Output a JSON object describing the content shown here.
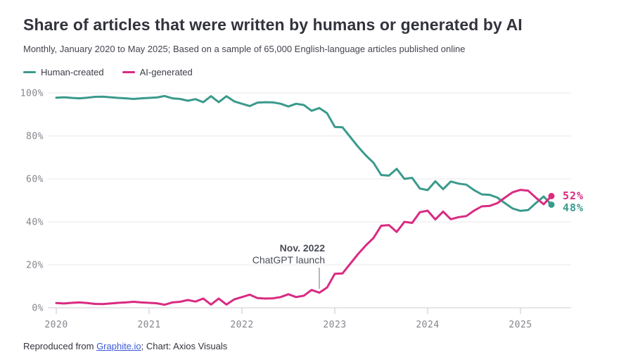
{
  "header": {
    "title": "Share of articles that were written by humans or generated by AI",
    "subtitle": "Monthly, January 2020 to May 2025; Based on a sample of 65,000 English-language articles published online"
  },
  "legend": [
    {
      "label": "Human-created",
      "color": "#3a9a8c"
    },
    {
      "label": "AI-generated",
      "color": "#da2a82"
    }
  ],
  "chart_data": {
    "type": "line",
    "title": "Share of articles that were written by humans or generated by AI",
    "x_unit": "month",
    "x_range": [
      "2020-01",
      "2025-05"
    ],
    "x_tick_labels": [
      "2020",
      "2021",
      "2022",
      "2023",
      "2024",
      "2025"
    ],
    "y_tick_labels": [
      "0%",
      "20%",
      "40%",
      "60%",
      "80%",
      "100%"
    ],
    "ylim": [
      0,
      100
    ],
    "grid": "horizontal",
    "legend_position": "top-left",
    "series": [
      {
        "id": "human",
        "name": "Human-created",
        "color": "#3a9a8c",
        "end_label": "48%",
        "values": [
          97.8,
          98.0,
          97.7,
          97.5,
          97.8,
          98.2,
          98.3,
          98.0,
          97.7,
          97.5,
          97.2,
          97.5,
          97.7,
          97.9,
          98.6,
          97.5,
          97.2,
          96.4,
          97.1,
          95.7,
          98.5,
          95.7,
          98.5,
          96.1,
          95.0,
          93.9,
          95.5,
          95.7,
          95.6,
          95.0,
          93.7,
          95.0,
          94.4,
          91.7,
          93.0,
          90.6,
          84.2,
          84.0,
          79.5,
          75.0,
          71.0,
          67.5,
          61.8,
          61.5,
          64.7,
          60.0,
          60.5,
          55.5,
          54.8,
          58.9,
          55.2,
          58.8,
          57.8,
          57.3,
          54.8,
          52.8,
          52.6,
          51.3,
          48.7,
          46.2,
          45.1,
          45.5,
          48.8,
          51.8,
          48.0
        ]
      },
      {
        "id": "ai",
        "name": "AI-generated",
        "color": "#da2a82",
        "end_label": "52%",
        "values": [
          2.2,
          2.0,
          2.3,
          2.5,
          2.2,
          1.8,
          1.7,
          2.0,
          2.3,
          2.5,
          2.8,
          2.5,
          2.3,
          2.1,
          1.4,
          2.5,
          2.8,
          3.6,
          2.9,
          4.3,
          1.5,
          4.3,
          1.5,
          3.9,
          5.0,
          6.1,
          4.5,
          4.3,
          4.4,
          5.0,
          6.3,
          5.0,
          5.6,
          8.3,
          7.0,
          9.4,
          15.8,
          16.0,
          20.5,
          25.0,
          29.0,
          32.5,
          38.2,
          38.5,
          35.3,
          40.0,
          39.5,
          44.5,
          45.2,
          41.1,
          44.8,
          41.2,
          42.2,
          42.7,
          45.2,
          47.2,
          47.4,
          48.7,
          51.3,
          53.8,
          54.9,
          54.5,
          51.2,
          48.2,
          52.0
        ]
      }
    ],
    "annotation": {
      "line1": "Nov. 2022",
      "line2": "ChatGPT launch",
      "month_index": 34
    }
  },
  "footer": {
    "prefix": "Reproduced from ",
    "link_text": "Graphite.io",
    "suffix": "; Chart: Axios Visuals"
  }
}
